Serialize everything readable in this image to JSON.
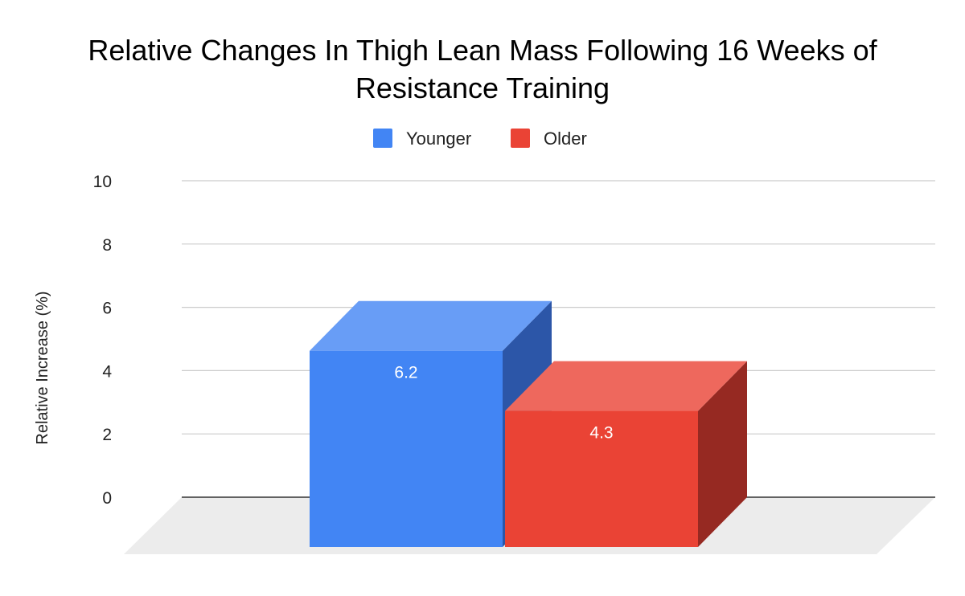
{
  "chart_data": {
    "type": "bar",
    "title": "Relative Changes In Thigh Lean Mass Following 16 Weeks of Resistance Training",
    "title_lines": [
      "Relative Changes In Thigh Lean Mass Following 16 Weeks of",
      "Resistance Training"
    ],
    "ylabel": "Relative Increase (%)",
    "xlabel": "",
    "ylim": [
      0,
      10
    ],
    "yticks": [
      "0",
      "2",
      "4",
      "6",
      "8",
      "10"
    ],
    "yticks_values": [
      0,
      2,
      4,
      6,
      8,
      10
    ],
    "grid": true,
    "style": "3d",
    "legend_position": "top",
    "series": [
      {
        "name": "Younger",
        "value": 6.2,
        "label": "6.2",
        "color": "#4285F4",
        "top_color": "#689DF6",
        "side_color": "#2C56A8"
      },
      {
        "name": "Older",
        "value": 4.3,
        "label": "4.3",
        "color": "#EA4335",
        "top_color": "#EE685D",
        "side_color": "#962922"
      }
    ]
  }
}
